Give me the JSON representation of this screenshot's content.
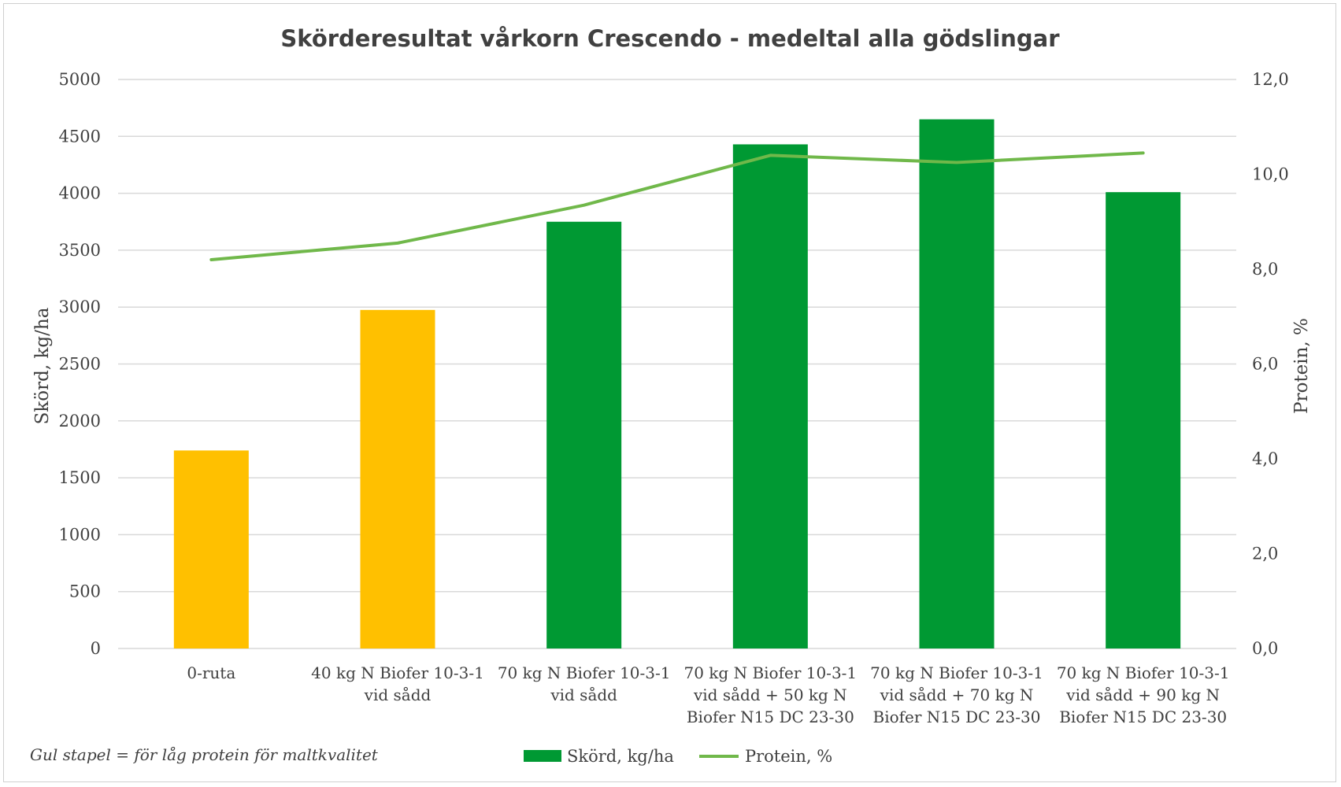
{
  "chart_data": {
    "type": "bar",
    "title": "Skörderesultat vårkorn Crescendo - medeltal alla gödslingar",
    "categories": [
      [
        "0-ruta"
      ],
      [
        "40 kg N Biofer 10-3-1",
        "vid sådd"
      ],
      [
        "70 kg N Biofer 10-3-1",
        "vid sådd"
      ],
      [
        "70 kg N Biofer 10-3-1",
        "vid sådd + 50 kg N",
        "Biofer N15 DC 23-30"
      ],
      [
        "70 kg N Biofer 10-3-1",
        "vid sådd + 70 kg N",
        "Biofer N15 DC 23-30"
      ],
      [
        "70 kg N Biofer 10-3-1",
        "vid sådd + 90 kg N",
        "Biofer N15 DC 23-30"
      ]
    ],
    "series": [
      {
        "name": "Skörd, kg/ha",
        "type": "bar",
        "axis": "left",
        "color": "#009933",
        "values": [
          1740,
          2975,
          3750,
          4430,
          4650,
          4010
        ],
        "bar_colors": [
          "#FFC000",
          "#FFC000",
          "#009933",
          "#009933",
          "#009933",
          "#009933"
        ]
      },
      {
        "name": "Protein, %",
        "type": "line",
        "axis": "right",
        "color": "#70B84A",
        "values": [
          8.2,
          8.55,
          9.35,
          10.4,
          10.25,
          10.45
        ]
      }
    ],
    "ylabel": "Skörd, kg/ha",
    "ylim": [
      0,
      5000
    ],
    "yticks": [
      "5000",
      "4500",
      "4000",
      "3500",
      "3000",
      "2500",
      "2000",
      "1500",
      "1000",
      "500",
      "0"
    ],
    "y2label": "Protein, %",
    "y2lim": [
      0,
      12
    ],
    "y2ticks": [
      "12,0",
      "10,0",
      "8,0",
      "6,0",
      "4,0",
      "2,0",
      "0,0"
    ],
    "grid": true,
    "legend_position": "bottom",
    "annotation": "Gul stapel = för låg protein för maltkvalitet"
  }
}
